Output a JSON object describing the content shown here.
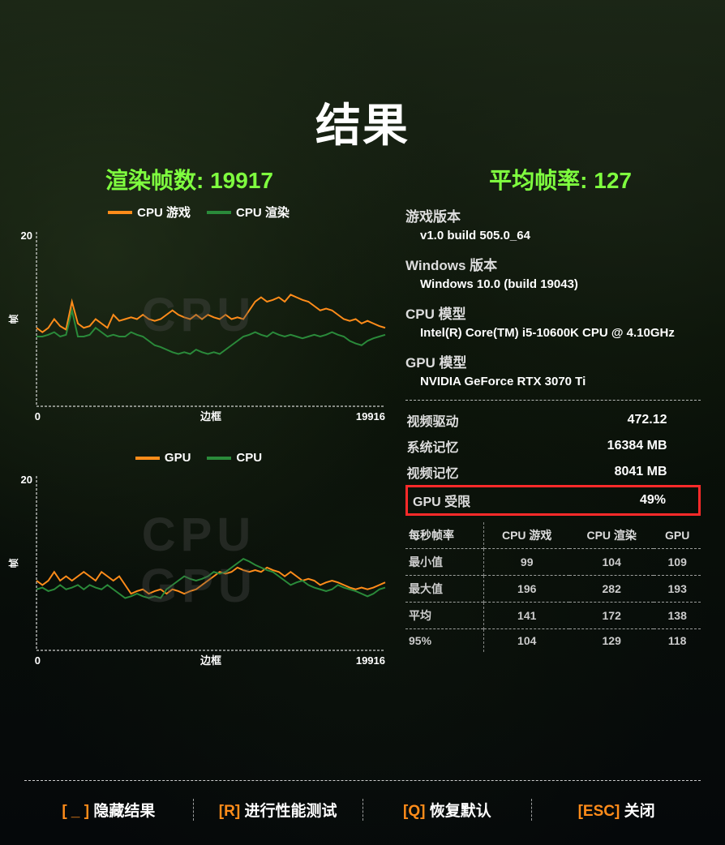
{
  "title": "结果",
  "frames_rendered": {
    "label": "渲染帧数:",
    "value": "19917"
  },
  "avg_fps": {
    "label": "平均帧率:",
    "value": "127"
  },
  "accent_color": "#7fff3f",
  "chart1": {
    "legend": [
      {
        "label": "CPU 游戏",
        "color": "#ff8c1a"
      },
      {
        "label": "CPU 渲染",
        "color": "#2a8a3a"
      }
    ],
    "watermark": "CPU",
    "ylim": [
      0,
      20
    ],
    "ytick": "20",
    "xlim": [
      0,
      19916
    ],
    "xlabel": "边框",
    "xstart": "0",
    "xend": "19916",
    "axis_color": "#ffffff",
    "series": [
      {
        "color": "#ff8c1a",
        "width": 2,
        "y": [
          9,
          8.5,
          9,
          10,
          9.2,
          8.8,
          12,
          9.5,
          9,
          9.2,
          10,
          9.5,
          9,
          10.5,
          9.8,
          10,
          10.2,
          10,
          10.5,
          10,
          9.8,
          10,
          10.5,
          11,
          10.5,
          10.2,
          10,
          10.5,
          10,
          10.5,
          10.2,
          10,
          10.5,
          10,
          10.2,
          10,
          11,
          12,
          12.5,
          12,
          12.2,
          12.5,
          12,
          12.8,
          12.5,
          12.2,
          12,
          11.5,
          11,
          11.2,
          11,
          10.5,
          10,
          9.8,
          10,
          9.5,
          9.8,
          9.5,
          9.2,
          9
        ]
      },
      {
        "color": "#2a8a3a",
        "width": 2,
        "y": [
          8,
          8,
          8.2,
          8.5,
          8,
          8.2,
          11,
          8,
          8,
          8.2,
          9,
          8.5,
          8,
          8.2,
          8,
          8,
          8.5,
          8.2,
          8,
          7.5,
          7,
          6.8,
          6.5,
          6.2,
          6,
          6.2,
          6,
          6.5,
          6.2,
          6,
          6.2,
          6,
          6.5,
          7,
          7.5,
          8,
          8.2,
          8.5,
          8.2,
          8,
          8.5,
          8.2,
          8,
          8.2,
          8,
          7.8,
          8,
          8.2,
          8,
          8.2,
          8.5,
          8.2,
          8,
          7.5,
          7.2,
          7,
          7.5,
          7.8,
          8,
          8.2
        ]
      }
    ]
  },
  "chart2": {
    "legend": [
      {
        "label": "GPU",
        "color": "#ff8c1a"
      },
      {
        "label": "CPU",
        "color": "#2a8a3a"
      }
    ],
    "watermark_lines": [
      "CPU",
      "GPU"
    ],
    "ylim": [
      0,
      20
    ],
    "ytick": "20",
    "xlim": [
      0,
      19916
    ],
    "xlabel": "边框",
    "xstart": "0",
    "xend": "19916",
    "axis_color": "#ffffff",
    "series": [
      {
        "color": "#ff8c1a",
        "width": 2,
        "y": [
          8,
          7.5,
          8,
          9,
          8,
          8.5,
          8,
          8.5,
          9,
          8.5,
          8,
          9,
          8.5,
          8,
          8.5,
          7.5,
          6.5,
          6.8,
          7,
          6.5,
          6.8,
          7,
          6.5,
          7,
          6.8,
          6.5,
          6.8,
          7,
          7.5,
          8,
          8.5,
          9,
          8.8,
          9,
          9.5,
          9.2,
          9,
          9.2,
          9,
          9.5,
          9.2,
          9,
          8.5,
          9,
          8.5,
          8,
          8.2,
          8,
          7.5,
          7.8,
          8,
          7.8,
          7.5,
          7.2,
          7,
          7.2,
          7,
          7.2,
          7.5,
          7.8
        ]
      },
      {
        "color": "#2a8a3a",
        "width": 2,
        "y": [
          7,
          7.2,
          6.8,
          7,
          7.5,
          7,
          7.2,
          7.5,
          7,
          7.5,
          7.2,
          7,
          7.5,
          7,
          6.5,
          6,
          6.2,
          6.5,
          6.2,
          6,
          6.2,
          6,
          7,
          7.5,
          8,
          8.5,
          8.2,
          8,
          8.2,
          8.5,
          9,
          8.8,
          9,
          9.5,
          10,
          10.5,
          10.2,
          9.8,
          9.5,
          9.2,
          9,
          8.5,
          8,
          7.5,
          7.8,
          8,
          7.5,
          7.2,
          7,
          6.8,
          7,
          7.5,
          7.2,
          7,
          6.8,
          6.5,
          6.2,
          6.5,
          7,
          7.2
        ]
      }
    ]
  },
  "info": {
    "game_version": {
      "label": "游戏版本",
      "value": "v1.0 build 505.0_64"
    },
    "windows_version": {
      "label": "Windows 版本",
      "value": "Windows 10.0 (build 19043)"
    },
    "cpu_model": {
      "label": "CPU 模型",
      "value": "Intel(R) Core(TM) i5-10600K CPU @ 4.10GHz"
    },
    "gpu_model": {
      "label": "GPU 模型",
      "value": "NVIDIA GeForce RTX 3070 Ti"
    }
  },
  "kv": {
    "video_driver": {
      "label": "视频驱动",
      "value": "472.12"
    },
    "sys_mem": {
      "label": "系统记忆",
      "value": "16384 MB"
    },
    "vid_mem": {
      "label": "视频记忆",
      "value": "8041 MB"
    },
    "gpu_bound": {
      "label": "GPU 受限",
      "value": "49%",
      "highlight_color": "#ff2a2a"
    }
  },
  "fps_table": {
    "header": [
      "每秒帧率",
      "CPU 游戏",
      "CPU 渲染",
      "GPU"
    ],
    "rows": [
      {
        "label": "最小值",
        "v": [
          "99",
          "104",
          "109"
        ]
      },
      {
        "label": "最大值",
        "v": [
          "196",
          "282",
          "193"
        ]
      },
      {
        "label": "平均",
        "v": [
          "141",
          "172",
          "138"
        ]
      },
      {
        "label": "95%",
        "v": [
          "104",
          "129",
          "118"
        ]
      }
    ]
  },
  "footer": {
    "key_color": "#ff8c1a",
    "items": [
      {
        "key": "[ _ ]",
        "label": "隐藏结果"
      },
      {
        "key": "[R]",
        "label": "进行性能测试"
      },
      {
        "key": "[Q]",
        "label": "恢复默认"
      },
      {
        "key": "[ESC]",
        "label": "关闭"
      }
    ]
  }
}
